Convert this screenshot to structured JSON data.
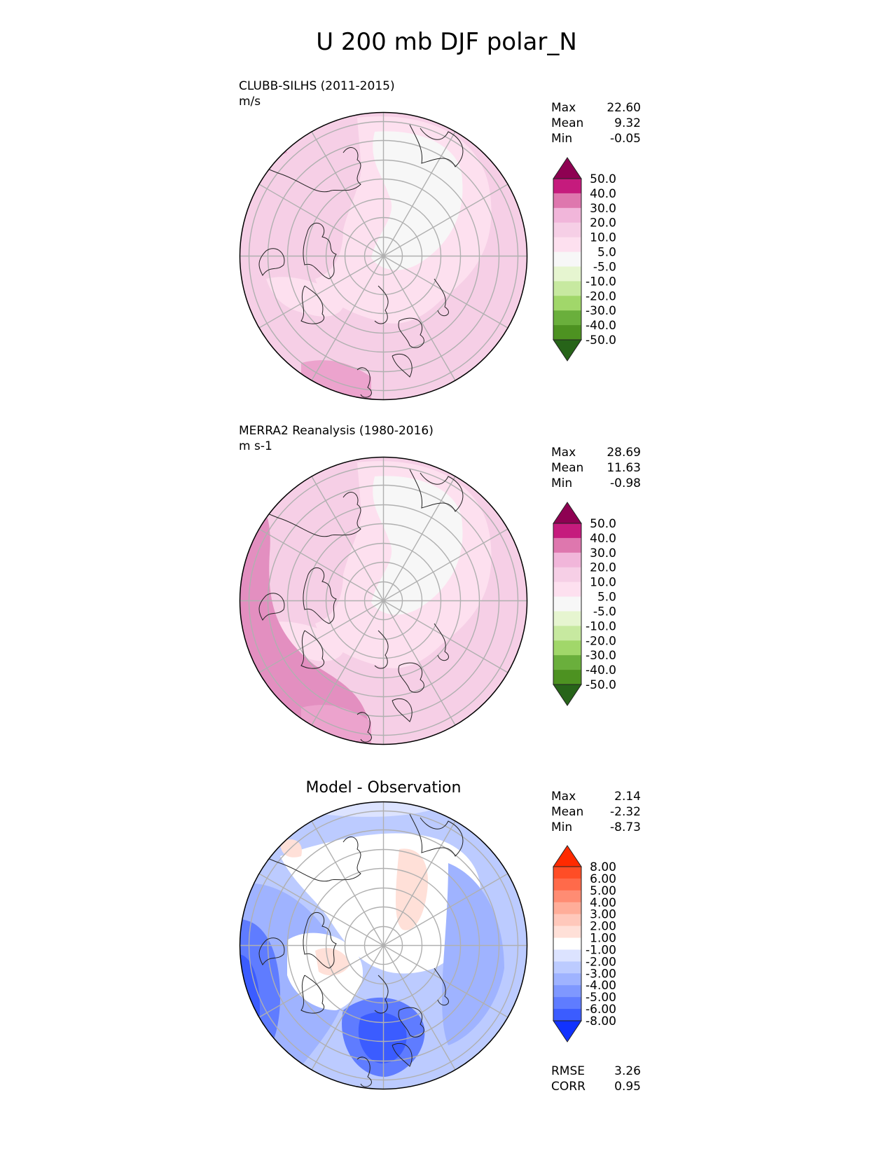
{
  "figure": {
    "title": "U 200 mb DJF polar_N"
  },
  "panels": [
    {
      "id": "test",
      "label_line1": "CLUBB-SILHS (2011-2015)",
      "label_line2": "m/s",
      "center_title": "",
      "stats": [
        {
          "label": "Max",
          "value": "22.60"
        },
        {
          "label": "Mean",
          "value": "9.32"
        },
        {
          "label": "Min",
          "value": "-0.05"
        }
      ],
      "extra_stats": []
    },
    {
      "id": "reference",
      "label_line1": "MERRA2 Reanalysis (1980-2016)",
      "label_line2": "m s-1",
      "center_title": "",
      "stats": [
        {
          "label": "Max",
          "value": "28.69"
        },
        {
          "label": "Mean",
          "value": "11.63"
        },
        {
          "label": "Min",
          "value": "-0.98"
        }
      ],
      "extra_stats": []
    },
    {
      "id": "diff",
      "label_line1": "",
      "label_line2": "",
      "center_title": "Model - Observation",
      "stats": [
        {
          "label": "Max",
          "value": "2.14"
        },
        {
          "label": "Mean",
          "value": "-2.32"
        },
        {
          "label": "Min",
          "value": "-8.73"
        }
      ],
      "extra_stats": [
        {
          "label": "RMSE",
          "value": "3.26"
        },
        {
          "label": "CORR",
          "value": "0.95"
        }
      ]
    }
  ],
  "chart_data": [
    {
      "type": "heatmap",
      "projection": "north polar stereographic",
      "title": "CLUBB-SILHS (2011-2015)",
      "units": "m/s",
      "colorbar": {
        "levels": [
          "50.0",
          "40.0",
          "30.0",
          "20.0",
          "10.0",
          "5.0",
          "-5.0",
          "-10.0",
          "-20.0",
          "-30.0",
          "-40.0",
          "-50.0"
        ],
        "colors": [
          "#8e0152",
          "#c51b7d",
          "#de77ae",
          "#f1b6da",
          "#f6cfe6",
          "#fde0ef",
          "#f7f7f7",
          "#e6f5d0",
          "#c7e9a0",
          "#a1d76a",
          "#6aaf3c",
          "#4d9221",
          "#276419"
        ],
        "extend": "both"
      },
      "field_summary": {
        "max": 22.6,
        "mean": 9.32,
        "min": -0.05
      }
    },
    {
      "type": "heatmap",
      "projection": "north polar stereographic",
      "title": "MERRA2 Reanalysis (1980-2016)",
      "units": "m s-1",
      "colorbar": {
        "levels": [
          "50.0",
          "40.0",
          "30.0",
          "20.0",
          "10.0",
          "5.0",
          "-5.0",
          "-10.0",
          "-20.0",
          "-30.0",
          "-40.0",
          "-50.0"
        ],
        "colors": [
          "#8e0152",
          "#c51b7d",
          "#de77ae",
          "#f1b6da",
          "#f6cfe6",
          "#fde0ef",
          "#f7f7f7",
          "#e6f5d0",
          "#c7e9a0",
          "#a1d76a",
          "#6aaf3c",
          "#4d9221",
          "#276419"
        ],
        "extend": "both"
      },
      "field_summary": {
        "max": 28.69,
        "mean": 11.63,
        "min": -0.98
      }
    },
    {
      "type": "heatmap",
      "projection": "north polar stereographic",
      "title": "Model - Observation",
      "colorbar": {
        "levels": [
          "8.00",
          "6.00",
          "5.00",
          "4.00",
          "3.00",
          "2.00",
          "1.00",
          "-1.00",
          "-2.00",
          "-3.00",
          "-4.00",
          "-5.00",
          "-6.00",
          "-8.00"
        ],
        "colors": [
          "#ff2a00",
          "#ff4d26",
          "#ff6a4a",
          "#ff8c73",
          "#ffad99",
          "#ffc8bb",
          "#ffe0d8",
          "#ffffff",
          "#dce3ff",
          "#bccbff",
          "#9fb3ff",
          "#7f98ff",
          "#5f7cff",
          "#3b5cff",
          "#1132ff"
        ],
        "extend": "both"
      },
      "field_summary": {
        "max": 2.14,
        "mean": -2.32,
        "min": -8.73,
        "rmse": 3.26,
        "corr": 0.95
      }
    }
  ]
}
